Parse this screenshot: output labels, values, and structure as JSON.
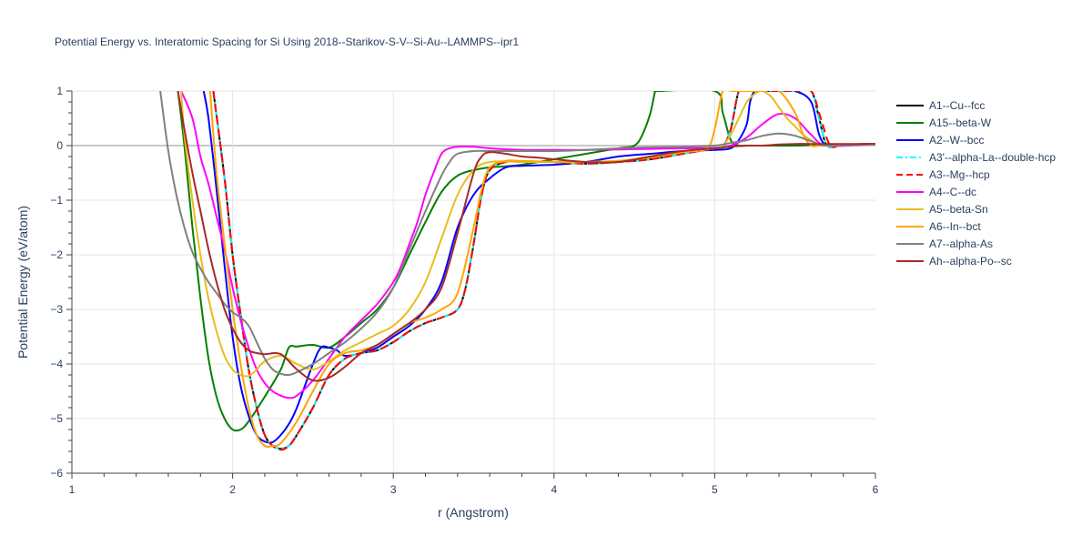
{
  "chart_data": {
    "type": "line",
    "title": "Potential Energy vs. Interatomic Spacing for Si Using 2018--Starikov-S-V--Si-Au--LAMMPS--ipr1",
    "xlabel": "r (Angstrom)",
    "ylabel": "Potential Energy (eV/atom)",
    "xlim": [
      1,
      6
    ],
    "ylim": [
      -6,
      1
    ],
    "xticks": [
      "1",
      "2",
      "3",
      "4",
      "5",
      "6"
    ],
    "yticks": [
      "1",
      "0",
      "−1",
      "−2",
      "−3",
      "−4",
      "−5",
      "−6"
    ],
    "grid": true,
    "legend_position": "right",
    "series": [
      {
        "name": "A1--Cu--fcc",
        "color": "#000000",
        "dash": "solid",
        "x": [
          1.88,
          1.95,
          2.0,
          2.05,
          2.1,
          2.15,
          2.2,
          2.25,
          2.3,
          2.35,
          2.4,
          2.5,
          2.6,
          2.7,
          2.8,
          2.9,
          3.0,
          3.1,
          3.2,
          3.3,
          3.4,
          3.45,
          3.5,
          3.55,
          3.6,
          3.7,
          3.8,
          3.9,
          4.0,
          4.2,
          4.4,
          4.6,
          4.8,
          5.0,
          5.05,
          5.1,
          5.15,
          5.2,
          5.25,
          5.3,
          5.4,
          5.5,
          5.6,
          5.65,
          5.7,
          5.8,
          6.0
        ],
        "y": [
          1,
          -0.6,
          -2.0,
          -3.1,
          -4.1,
          -4.8,
          -5.3,
          -5.5,
          -5.55,
          -5.5,
          -5.3,
          -4.8,
          -4.2,
          -3.9,
          -3.8,
          -3.75,
          -3.6,
          -3.4,
          -3.25,
          -3.15,
          -3.0,
          -2.6,
          -1.8,
          -0.9,
          -0.45,
          -0.3,
          -0.3,
          -0.3,
          -0.3,
          -0.33,
          -0.3,
          -0.25,
          -0.15,
          -0.05,
          -0.02,
          0.3,
          1,
          1,
          1,
          1,
          1,
          1,
          1,
          0.5,
          0,
          0.02,
          0.03
        ]
      },
      {
        "name": "A15--beta-W",
        "color": "#008000",
        "dash": "solid",
        "x": [
          1.66,
          1.7,
          1.75,
          1.8,
          1.85,
          1.9,
          1.95,
          2.0,
          2.05,
          2.1,
          2.2,
          2.3,
          2.35,
          2.4,
          2.5,
          2.6,
          2.7,
          2.8,
          2.9,
          3.0,
          3.1,
          3.2,
          3.3,
          3.4,
          3.5,
          3.6,
          3.7,
          3.8,
          4.0,
          4.2,
          4.4,
          4.5,
          4.55,
          4.6,
          4.63,
          4.65,
          5.0,
          5.05,
          5.1,
          5.15,
          5.2,
          5.3,
          5.5,
          5.7,
          6.0
        ],
        "y": [
          1,
          0,
          -1.5,
          -2.8,
          -3.9,
          -4.6,
          -5.0,
          -5.2,
          -5.2,
          -5.05,
          -4.6,
          -4.1,
          -3.7,
          -3.68,
          -3.65,
          -3.7,
          -3.5,
          -3.25,
          -3.0,
          -2.6,
          -2.0,
          -1.4,
          -0.85,
          -0.55,
          -0.45,
          -0.4,
          -0.38,
          -0.35,
          -0.25,
          -0.15,
          -0.05,
          0.0,
          0.2,
          0.6,
          1,
          1,
          1,
          0.6,
          0.1,
          0.0,
          0.0,
          0.0,
          0.0,
          0.02,
          0.03
        ]
      },
      {
        "name": "A2--W--bcc",
        "color": "#0000ff",
        "dash": "solid",
        "x": [
          1.82,
          1.85,
          1.9,
          1.95,
          2.0,
          2.05,
          2.1,
          2.15,
          2.2,
          2.25,
          2.3,
          2.35,
          2.4,
          2.5,
          2.55,
          2.6,
          2.65,
          2.7,
          2.8,
          2.9,
          3.0,
          3.1,
          3.2,
          3.3,
          3.4,
          3.5,
          3.6,
          3.7,
          3.8,
          4.0,
          4.2,
          4.4,
          4.6,
          4.8,
          5.0,
          5.1,
          5.15,
          5.2,
          5.22,
          5.25,
          5.3,
          5.4,
          5.5,
          5.6,
          5.65,
          5.7,
          5.8,
          6.0
        ],
        "y": [
          1,
          0.5,
          -0.8,
          -2.2,
          -3.5,
          -4.4,
          -4.95,
          -5.3,
          -5.42,
          -5.43,
          -5.3,
          -5.1,
          -4.8,
          -4.0,
          -3.7,
          -3.7,
          -3.75,
          -3.85,
          -3.8,
          -3.7,
          -3.5,
          -3.3,
          -3.0,
          -2.5,
          -1.5,
          -0.9,
          -0.6,
          -0.4,
          -0.37,
          -0.35,
          -0.3,
          -0.2,
          -0.15,
          -0.1,
          -0.08,
          -0.05,
          0.1,
          0.4,
          0.8,
          1,
          1,
          1,
          1,
          0.8,
          0.2,
          0,
          0.02,
          0.03
        ]
      },
      {
        "name": "A3'--alpha-La--double-hcp",
        "color": "#00ffff",
        "dash": "dashdot",
        "x": [
          1.88,
          1.95,
          2.0,
          2.05,
          2.1,
          2.15,
          2.2,
          2.25,
          2.3,
          2.35,
          2.4,
          2.5,
          2.6,
          2.7,
          2.8,
          2.9,
          3.0,
          3.1,
          3.2,
          3.3,
          3.4,
          3.45,
          3.5,
          3.55,
          3.6,
          3.7,
          3.8,
          3.9,
          4.0,
          4.2,
          4.4,
          4.6,
          4.8,
          5.0,
          5.05,
          5.1,
          5.15,
          5.2,
          5.3,
          5.5,
          5.6,
          5.65,
          5.7,
          5.8,
          6.0
        ],
        "y": [
          1,
          -0.6,
          -2.0,
          -3.1,
          -4.1,
          -4.8,
          -5.3,
          -5.5,
          -5.55,
          -5.5,
          -5.3,
          -4.8,
          -4.2,
          -3.9,
          -3.8,
          -3.75,
          -3.6,
          -3.4,
          -3.25,
          -3.15,
          -3.0,
          -2.6,
          -1.8,
          -0.9,
          -0.45,
          -0.3,
          -0.3,
          -0.3,
          -0.3,
          -0.33,
          -0.3,
          -0.25,
          -0.15,
          -0.05,
          -0.02,
          0.3,
          1,
          1,
          1,
          1,
          1,
          0.5,
          0,
          0.02,
          0.03
        ]
      },
      {
        "name": "A3--Mg--hcp",
        "color": "#ff0000",
        "dash": "dash",
        "x": [
          1.88,
          1.95,
          2.0,
          2.05,
          2.1,
          2.15,
          2.2,
          2.25,
          2.3,
          2.35,
          2.4,
          2.5,
          2.6,
          2.7,
          2.8,
          2.9,
          3.0,
          3.1,
          3.2,
          3.3,
          3.4,
          3.45,
          3.5,
          3.55,
          3.6,
          3.7,
          3.8,
          3.9,
          4.0,
          4.2,
          4.4,
          4.6,
          4.8,
          5.0,
          5.05,
          5.1,
          5.15,
          5.2,
          5.3,
          5.5,
          5.6,
          5.66,
          5.72,
          5.8,
          6.0
        ],
        "y": [
          1,
          -0.6,
          -2.0,
          -3.1,
          -4.1,
          -4.8,
          -5.3,
          -5.5,
          -5.57,
          -5.5,
          -5.3,
          -4.8,
          -4.2,
          -3.9,
          -3.8,
          -3.75,
          -3.6,
          -3.4,
          -3.25,
          -3.15,
          -3.0,
          -2.6,
          -1.8,
          -0.9,
          -0.45,
          -0.3,
          -0.3,
          -0.3,
          -0.3,
          -0.33,
          -0.3,
          -0.25,
          -0.15,
          -0.05,
          -0.02,
          0.3,
          1,
          1,
          1,
          1,
          1,
          0.5,
          0,
          0.02,
          0.03
        ]
      },
      {
        "name": "A4--C--dc",
        "color": "#ff00ff",
        "dash": "solid",
        "x": [
          1.68,
          1.75,
          1.8,
          1.85,
          1.9,
          1.95,
          2.0,
          2.05,
          2.1,
          2.15,
          2.2,
          2.25,
          2.3,
          2.35,
          2.4,
          2.5,
          2.6,
          2.7,
          2.8,
          2.9,
          3.0,
          3.05,
          3.1,
          3.15,
          3.2,
          3.25,
          3.3,
          3.35,
          3.4,
          3.5,
          3.6,
          3.8,
          4.0,
          4.2,
          4.4,
          4.6,
          4.8,
          5.0,
          5.1,
          5.2,
          5.3,
          5.4,
          5.5,
          5.6,
          5.7,
          6.0
        ],
        "y": [
          1,
          0.5,
          -0.2,
          -0.7,
          -1.3,
          -1.9,
          -2.6,
          -3.2,
          -3.7,
          -4.1,
          -4.35,
          -4.5,
          -4.58,
          -4.62,
          -4.58,
          -4.3,
          -3.9,
          -3.5,
          -3.2,
          -2.9,
          -2.5,
          -2.2,
          -1.8,
          -1.4,
          -0.9,
          -0.5,
          -0.15,
          -0.05,
          -0.02,
          -0.02,
          -0.05,
          -0.08,
          -0.08,
          -0.08,
          -0.07,
          -0.06,
          -0.05,
          -0.04,
          0.0,
          0.15,
          0.4,
          0.58,
          0.5,
          0.2,
          0.0,
          0.03
        ]
      },
      {
        "name": "A5--beta-Sn",
        "color": "#e6be1e",
        "dash": "solid",
        "x": [
          1.68,
          1.7,
          1.75,
          1.8,
          1.85,
          1.9,
          1.95,
          2.0,
          2.05,
          2.1,
          2.15,
          2.2,
          2.3,
          2.4,
          2.5,
          2.6,
          2.7,
          2.8,
          2.9,
          3.0,
          3.1,
          3.2,
          3.3,
          3.4,
          3.5,
          3.6,
          3.8,
          4.0,
          4.2,
          4.4,
          4.6,
          4.8,
          5.0,
          5.05,
          5.1,
          5.15,
          5.2,
          5.25,
          5.28,
          5.3,
          5.35,
          5.4,
          5.45,
          5.5,
          5.55,
          5.6,
          5.65,
          5.7,
          6.0
        ],
        "y": [
          1,
          0.2,
          -1.0,
          -2.0,
          -2.8,
          -3.4,
          -3.85,
          -4.1,
          -4.2,
          -4.22,
          -4.1,
          -3.95,
          -3.85,
          -4.0,
          -4.1,
          -3.95,
          -3.75,
          -3.6,
          -3.45,
          -3.3,
          -3.0,
          -2.5,
          -1.7,
          -0.9,
          -0.45,
          -0.3,
          -0.3,
          -0.3,
          -0.3,
          -0.28,
          -0.2,
          -0.12,
          -0.05,
          0.0,
          0.2,
          0.5,
          0.8,
          0.95,
          1.0,
          1.0,
          0.9,
          0.7,
          0.5,
          0.35,
          0.2,
          0.1,
          0.02,
          0.0,
          0.03
        ]
      },
      {
        "name": "A6--In--bct",
        "color": "#ffa500",
        "dash": "solid",
        "x": [
          1.86,
          1.9,
          1.95,
          2.0,
          2.05,
          2.1,
          2.15,
          2.2,
          2.25,
          2.3,
          2.4,
          2.5,
          2.6,
          2.7,
          2.8,
          2.9,
          3.0,
          3.1,
          3.2,
          3.3,
          3.4,
          3.5,
          3.55,
          3.6,
          3.7,
          3.8,
          4.0,
          4.2,
          4.4,
          4.6,
          4.8,
          4.95,
          5.0,
          5.05,
          5.1,
          5.15,
          5.2,
          5.3,
          5.4,
          5.5,
          5.55,
          5.6,
          5.65,
          5.7,
          6.0
        ],
        "y": [
          1,
          -0.5,
          -1.8,
          -3.0,
          -4.0,
          -4.8,
          -5.3,
          -5.5,
          -5.5,
          -5.45,
          -5.05,
          -4.5,
          -4.0,
          -3.8,
          -3.75,
          -3.65,
          -3.45,
          -3.25,
          -3.15,
          -3.0,
          -2.7,
          -1.5,
          -0.8,
          -0.4,
          -0.28,
          -0.28,
          -0.3,
          -0.3,
          -0.28,
          -0.22,
          -0.12,
          -0.05,
          0.3,
          1,
          1,
          1,
          1,
          1,
          1,
          0.6,
          0.2,
          0.0,
          0.0,
          0.0,
          0.03
        ]
      },
      {
        "name": "A7--alpha-As",
        "color": "#808080",
        "dash": "solid",
        "x": [
          1.55,
          1.6,
          1.65,
          1.7,
          1.75,
          1.8,
          1.85,
          1.9,
          1.95,
          2.0,
          2.05,
          2.1,
          2.15,
          2.2,
          2.25,
          2.3,
          2.35,
          2.4,
          2.5,
          2.6,
          2.7,
          2.8,
          2.9,
          3.0,
          3.1,
          3.2,
          3.3,
          3.35,
          3.4,
          3.5,
          3.6,
          3.8,
          4.0,
          4.2,
          4.4,
          4.6,
          4.8,
          5.0,
          5.1,
          5.2,
          5.3,
          5.4,
          5.5,
          5.6,
          5.7,
          6.0
        ],
        "y": [
          1,
          -0.1,
          -0.9,
          -1.5,
          -1.95,
          -2.25,
          -2.5,
          -2.7,
          -2.9,
          -3.05,
          -3.15,
          -3.3,
          -3.6,
          -3.9,
          -4.1,
          -4.18,
          -4.2,
          -4.15,
          -4.0,
          -3.8,
          -3.6,
          -3.35,
          -3.05,
          -2.6,
          -1.9,
          -1.2,
          -0.55,
          -0.3,
          -0.15,
          -0.1,
          -0.1,
          -0.1,
          -0.1,
          -0.08,
          -0.05,
          -0.03,
          -0.02,
          0.0,
          0.05,
          0.1,
          0.18,
          0.22,
          0.18,
          0.08,
          0.0,
          0.03
        ]
      },
      {
        "name": "Ah--alpha-Po--sc",
        "color": "#a52a2a",
        "dash": "solid",
        "x": [
          1.66,
          1.7,
          1.75,
          1.8,
          1.85,
          1.9,
          1.95,
          2.0,
          2.05,
          2.1,
          2.15,
          2.2,
          2.3,
          2.4,
          2.5,
          2.6,
          2.7,
          2.8,
          2.9,
          3.0,
          3.1,
          3.2,
          3.3,
          3.4,
          3.5,
          3.55,
          3.6,
          3.7,
          3.8,
          3.9,
          4.0,
          4.2,
          4.4,
          4.6,
          4.8,
          5.0,
          5.1,
          5.2,
          5.3,
          5.4,
          5.5,
          5.6,
          5.7,
          6.0
        ],
        "y": [
          1,
          0.3,
          -0.5,
          -1.2,
          -1.9,
          -2.5,
          -3.0,
          -3.35,
          -3.6,
          -3.75,
          -3.8,
          -3.82,
          -3.82,
          -4.1,
          -4.3,
          -4.25,
          -4.05,
          -3.8,
          -3.65,
          -3.45,
          -3.25,
          -3.0,
          -2.6,
          -1.6,
          -0.5,
          -0.2,
          -0.12,
          -0.15,
          -0.2,
          -0.22,
          -0.25,
          -0.3,
          -0.3,
          -0.2,
          -0.1,
          -0.05,
          -0.02,
          0.0,
          0.0,
          0.02,
          0.03,
          0.03,
          0.03,
          0.03
        ]
      }
    ]
  }
}
